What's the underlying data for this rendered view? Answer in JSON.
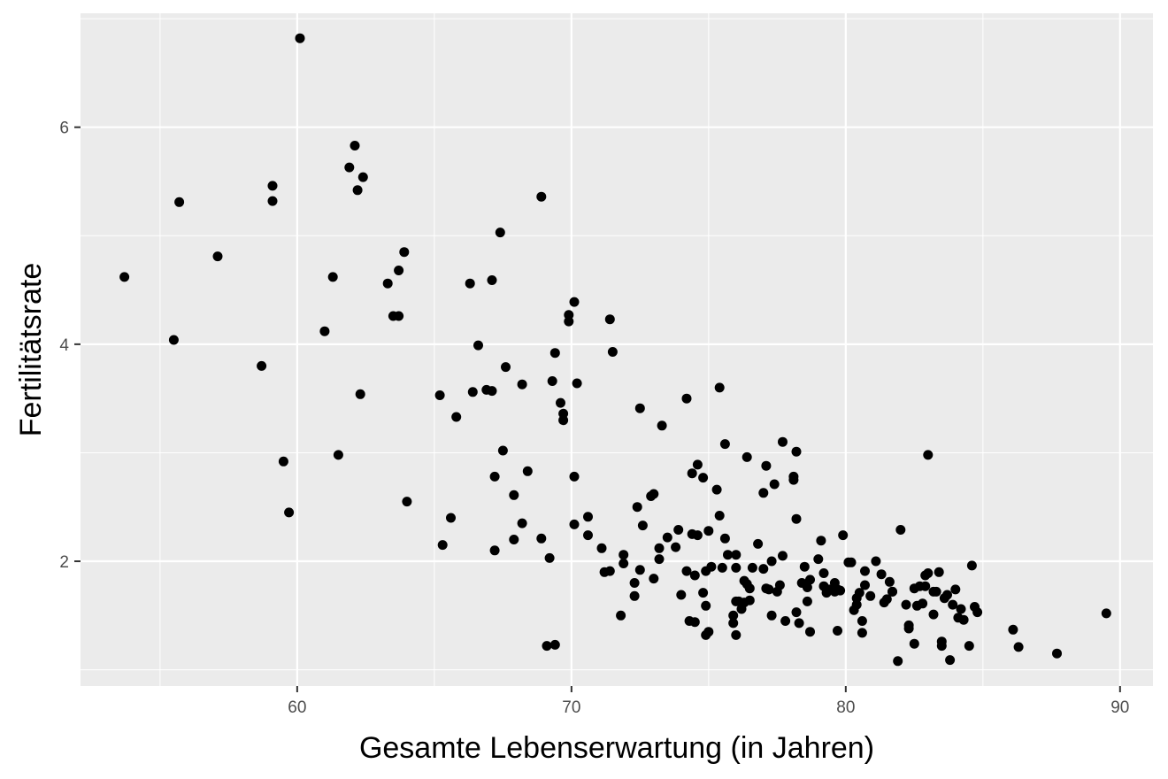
{
  "colors": {
    "panel": "#ebebeb",
    "grid": "#ffffff",
    "point": "#000000",
    "tick": "#333333"
  },
  "chart_data": {
    "type": "scatter",
    "title": "",
    "xlabel": "Gesamte Lebenserwartung (in Jahren)",
    "ylabel": "Fertilitätsrate",
    "xlim": [
      52.1,
      91.2
    ],
    "ylim": [
      0.85,
      7.05
    ],
    "xticks": [
      60,
      70,
      80,
      90
    ],
    "xtick_labels": [
      "60",
      "70",
      "80",
      "90"
    ],
    "yticks": [
      2,
      4,
      6
    ],
    "ytick_labels": [
      "2",
      "4",
      "6"
    ],
    "grid": true,
    "legend": "none",
    "points": [
      [
        53.7,
        4.62
      ],
      [
        55.5,
        4.04
      ],
      [
        55.7,
        5.31
      ],
      [
        57.1,
        4.81
      ],
      [
        58.7,
        3.8
      ],
      [
        59.1,
        5.46
      ],
      [
        59.1,
        5.32
      ],
      [
        59.5,
        2.92
      ],
      [
        59.7,
        2.45
      ],
      [
        60.1,
        6.82
      ],
      [
        61.0,
        4.12
      ],
      [
        61.3,
        4.62
      ],
      [
        61.5,
        2.98
      ],
      [
        61.9,
        5.63
      ],
      [
        62.1,
        5.83
      ],
      [
        62.2,
        5.42
      ],
      [
        62.3,
        3.54
      ],
      [
        62.4,
        5.54
      ],
      [
        63.3,
        4.56
      ],
      [
        63.5,
        4.26
      ],
      [
        63.7,
        4.68
      ],
      [
        63.7,
        4.26
      ],
      [
        63.9,
        4.85
      ],
      [
        64.0,
        2.55
      ],
      [
        65.2,
        3.53
      ],
      [
        65.3,
        2.15
      ],
      [
        65.6,
        2.4
      ],
      [
        65.8,
        3.33
      ],
      [
        66.3,
        4.56
      ],
      [
        66.4,
        3.56
      ],
      [
        66.6,
        3.99
      ],
      [
        66.9,
        3.58
      ],
      [
        67.1,
        3.57
      ],
      [
        67.1,
        4.59
      ],
      [
        67.2,
        2.78
      ],
      [
        67.2,
        2.1
      ],
      [
        67.4,
        5.03
      ],
      [
        67.5,
        3.02
      ],
      [
        67.6,
        3.79
      ],
      [
        67.9,
        2.2
      ],
      [
        67.9,
        2.61
      ],
      [
        68.2,
        2.35
      ],
      [
        68.2,
        3.63
      ],
      [
        68.4,
        2.83
      ],
      [
        68.9,
        2.21
      ],
      [
        68.9,
        5.36
      ],
      [
        69.1,
        1.22
      ],
      [
        69.2,
        2.03
      ],
      [
        69.3,
        3.66
      ],
      [
        69.4,
        1.23
      ],
      [
        69.4,
        3.92
      ],
      [
        69.6,
        3.46
      ],
      [
        69.7,
        3.3
      ],
      [
        69.7,
        3.36
      ],
      [
        69.9,
        4.21
      ],
      [
        69.9,
        4.27
      ],
      [
        70.1,
        2.34
      ],
      [
        70.1,
        2.78
      ],
      [
        70.1,
        4.39
      ],
      [
        70.2,
        3.64
      ],
      [
        70.6,
        2.41
      ],
      [
        70.6,
        2.24
      ],
      [
        71.1,
        2.12
      ],
      [
        71.2,
        1.9
      ],
      [
        71.4,
        1.91
      ],
      [
        71.4,
        4.23
      ],
      [
        71.5,
        3.93
      ],
      [
        71.8,
        1.5
      ],
      [
        71.9,
        2.06
      ],
      [
        71.9,
        1.98
      ],
      [
        72.3,
        1.68
      ],
      [
        72.3,
        1.8
      ],
      [
        72.4,
        2.5
      ],
      [
        72.5,
        1.92
      ],
      [
        72.5,
        3.41
      ],
      [
        72.6,
        2.33
      ],
      [
        72.9,
        2.6
      ],
      [
        73.0,
        1.84
      ],
      [
        73.0,
        2.62
      ],
      [
        73.2,
        2.02
      ],
      [
        73.2,
        2.12
      ],
      [
        73.3,
        3.25
      ],
      [
        73.5,
        2.22
      ],
      [
        73.8,
        2.13
      ],
      [
        73.9,
        2.29
      ],
      [
        74.0,
        1.69
      ],
      [
        74.2,
        1.91
      ],
      [
        74.2,
        3.5
      ],
      [
        74.3,
        1.45
      ],
      [
        74.4,
        2.81
      ],
      [
        74.4,
        2.25
      ],
      [
        74.5,
        1.44
      ],
      [
        74.5,
        1.87
      ],
      [
        74.6,
        2.89
      ],
      [
        74.6,
        2.24
      ],
      [
        74.8,
        2.77
      ],
      [
        74.8,
        1.71
      ],
      [
        74.9,
        1.59
      ],
      [
        74.9,
        1.91
      ],
      [
        74.9,
        1.32
      ],
      [
        75.0,
        1.35
      ],
      [
        75.0,
        2.28
      ],
      [
        75.1,
        1.95
      ],
      [
        75.3,
        2.66
      ],
      [
        75.4,
        2.42
      ],
      [
        75.4,
        3.6
      ],
      [
        75.5,
        1.94
      ],
      [
        75.6,
        2.21
      ],
      [
        75.6,
        3.08
      ],
      [
        75.7,
        2.06
      ],
      [
        75.9,
        1.43
      ],
      [
        75.9,
        1.5
      ],
      [
        76.0,
        1.63
      ],
      [
        76.0,
        1.32
      ],
      [
        76.0,
        1.94
      ],
      [
        76.0,
        2.06
      ],
      [
        76.1,
        1.63
      ],
      [
        76.2,
        1.56
      ],
      [
        76.3,
        1.62
      ],
      [
        76.3,
        1.82
      ],
      [
        76.4,
        1.79
      ],
      [
        76.4,
        2.96
      ],
      [
        76.5,
        1.75
      ],
      [
        76.5,
        1.64
      ],
      [
        76.6,
        1.94
      ],
      [
        76.8,
        2.16
      ],
      [
        77.0,
        2.63
      ],
      [
        77.0,
        1.93
      ],
      [
        77.1,
        1.75
      ],
      [
        77.1,
        2.88
      ],
      [
        77.2,
        1.74
      ],
      [
        77.3,
        2.0
      ],
      [
        77.3,
        1.5
      ],
      [
        77.4,
        2.71
      ],
      [
        77.5,
        1.72
      ],
      [
        77.6,
        1.78
      ],
      [
        77.7,
        2.05
      ],
      [
        77.7,
        3.1
      ],
      [
        77.8,
        1.45
      ],
      [
        78.1,
        2.78
      ],
      [
        78.1,
        2.75
      ],
      [
        78.2,
        1.53
      ],
      [
        78.2,
        2.39
      ],
      [
        78.2,
        3.01
      ],
      [
        78.3,
        1.43
      ],
      [
        78.4,
        1.8
      ],
      [
        78.5,
        1.95
      ],
      [
        78.6,
        1.76
      ],
      [
        78.6,
        1.63
      ],
      [
        78.7,
        1.35
      ],
      [
        78.7,
        1.83
      ],
      [
        79.0,
        2.02
      ],
      [
        79.1,
        2.19
      ],
      [
        79.2,
        1.89
      ],
      [
        79.2,
        1.77
      ],
      [
        79.3,
        1.71
      ],
      [
        79.4,
        1.74
      ],
      [
        79.6,
        1.72
      ],
      [
        79.6,
        1.8
      ],
      [
        79.7,
        1.74
      ],
      [
        79.7,
        1.36
      ],
      [
        79.8,
        1.73
      ],
      [
        79.9,
        2.24
      ],
      [
        80.1,
        1.99
      ],
      [
        80.2,
        1.99
      ],
      [
        80.3,
        1.55
      ],
      [
        80.4,
        1.66
      ],
      [
        80.4,
        1.6
      ],
      [
        80.5,
        1.71
      ],
      [
        80.6,
        1.45
      ],
      [
        80.6,
        1.34
      ],
      [
        80.7,
        1.78
      ],
      [
        80.7,
        1.91
      ],
      [
        80.9,
        1.68
      ],
      [
        81.1,
        2.0
      ],
      [
        81.3,
        1.88
      ],
      [
        81.4,
        1.62
      ],
      [
        81.5,
        1.65
      ],
      [
        81.6,
        1.81
      ],
      [
        81.7,
        1.72
      ],
      [
        81.7,
        1.72
      ],
      [
        81.9,
        1.08
      ],
      [
        82.0,
        2.29
      ],
      [
        82.2,
        1.6
      ],
      [
        82.3,
        1.41
      ],
      [
        82.3,
        1.38
      ],
      [
        82.5,
        1.24
      ],
      [
        82.5,
        1.75
      ],
      [
        82.6,
        1.59
      ],
      [
        82.7,
        1.77
      ],
      [
        82.8,
        1.61
      ],
      [
        82.9,
        1.87
      ],
      [
        82.9,
        1.77
      ],
      [
        83.0,
        1.89
      ],
      [
        83.0,
        2.98
      ],
      [
        83.2,
        1.51
      ],
      [
        83.2,
        1.72
      ],
      [
        83.3,
        1.72
      ],
      [
        83.4,
        1.9
      ],
      [
        83.5,
        1.22
      ],
      [
        83.5,
        1.26
      ],
      [
        83.6,
        1.66
      ],
      [
        83.7,
        1.69
      ],
      [
        83.8,
        1.09
      ],
      [
        83.9,
        1.6
      ],
      [
        84.0,
        1.74
      ],
      [
        84.1,
        1.48
      ],
      [
        84.2,
        1.56
      ],
      [
        84.3,
        1.46
      ],
      [
        84.5,
        1.22
      ],
      [
        84.6,
        1.96
      ],
      [
        84.7,
        1.58
      ],
      [
        84.8,
        1.53
      ],
      [
        86.1,
        1.37
      ],
      [
        86.3,
        1.21
      ],
      [
        87.7,
        1.15
      ],
      [
        89.5,
        1.52
      ]
    ]
  }
}
